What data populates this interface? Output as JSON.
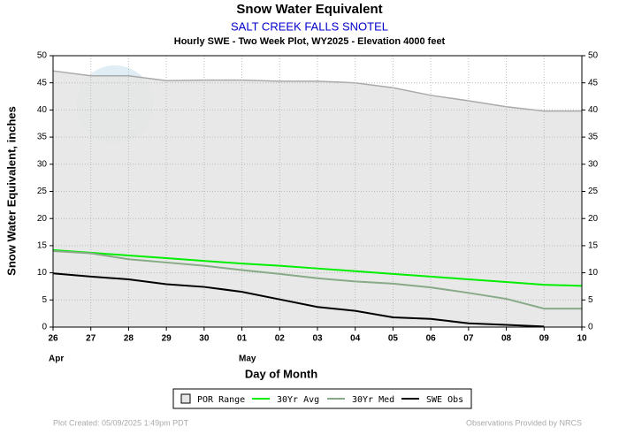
{
  "chart_data": {
    "type": "line",
    "title": "Snow Water Equivalent",
    "subtitle": "SALT CREEK FALLS SNOTEL",
    "description": "Hourly SWE - Two Week Plot, WY2025 -  Elevation 4000 feet",
    "x_label": "Day of Month",
    "y_label": "Snow Water Equivalent, inches",
    "months": [
      "Apr",
      "May"
    ],
    "categories": [
      "26",
      "27",
      "28",
      "29",
      "30",
      "01",
      "02",
      "03",
      "04",
      "05",
      "06",
      "07",
      "08",
      "09",
      "10"
    ],
    "series": [
      {
        "name": "POR Range",
        "color": "#e6e6e6",
        "area": true,
        "values": [
          47.2,
          46.3,
          46.3,
          45.4,
          45.5,
          45.5,
          45.3,
          45.3,
          45.0,
          44.1,
          42.7,
          41.7,
          40.6,
          39.8,
          39.8
        ]
      },
      {
        "name": "30Yr Avg",
        "color": "#00ee00",
        "values": [
          14.2,
          13.7,
          13.2,
          12.7,
          12.2,
          11.7,
          11.3,
          10.8,
          10.3,
          9.8,
          9.3,
          8.8,
          8.3,
          7.8,
          7.6
        ]
      },
      {
        "name": "30Yr Med",
        "color": "#88aa88",
        "values": [
          14.0,
          13.6,
          12.5,
          11.9,
          11.3,
          10.5,
          9.8,
          9.0,
          8.4,
          8.0,
          7.3,
          6.3,
          5.2,
          3.4,
          3.4
        ]
      },
      {
        "name": "SWE Obs",
        "color": "#000000",
        "values": [
          9.9,
          9.3,
          8.8,
          7.9,
          7.4,
          6.5,
          5.1,
          3.7,
          3.0,
          1.8,
          1.5,
          0.7,
          0.4,
          0.1,
          null
        ]
      }
    ],
    "ylim": [
      0,
      50
    ],
    "yticks": [
      0,
      5,
      10,
      15,
      20,
      25,
      30,
      35,
      40,
      45,
      50
    ],
    "grid": true,
    "footer_left": "Plot Created: 05/09/2025 1:49pm PDT",
    "footer_right": "Observations Provided by NRCS"
  }
}
